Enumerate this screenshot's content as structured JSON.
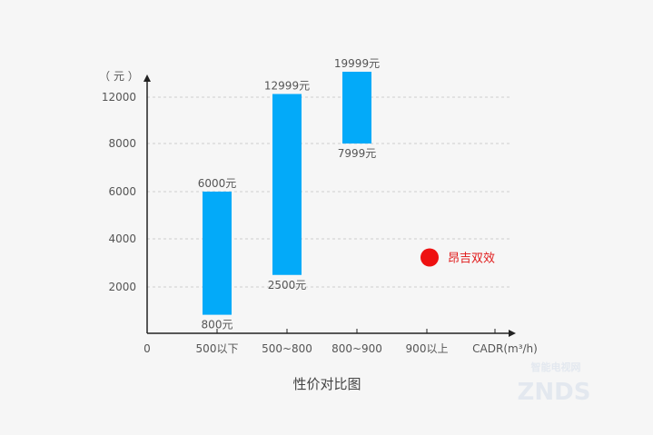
{
  "chart_data": {
    "type": "bar",
    "subtype": "floating-range",
    "caption": "性价对比图",
    "ylabel": "（ 元 ）",
    "xlabel": "CADR(m³/h)",
    "y_ticks": [
      2000,
      4000,
      6000,
      8000,
      12000
    ],
    "x_categories": [
      "0",
      "500以下",
      "500~800",
      "800~900",
      "900以上"
    ],
    "bars": [
      {
        "category": "500以下",
        "low": 800,
        "high": 6000,
        "low_label": "800元",
        "high_label": "6000元"
      },
      {
        "category": "500~800",
        "low": 2500,
        "high": 12999,
        "low_label": "2500元",
        "high_label": "12999元"
      },
      {
        "category": "800~900",
        "low": 7999,
        "high": 19999,
        "low_label": "7999元",
        "high_label": "19999元"
      }
    ],
    "marker": {
      "category": "900以上",
      "value": 3000,
      "label": "昂吉双效",
      "color": "#ee1111"
    },
    "bar_color": "#03aaf9",
    "grid": true
  },
  "watermark": {
    "text": "ZNDS",
    "subtitle": "智能电视网"
  }
}
